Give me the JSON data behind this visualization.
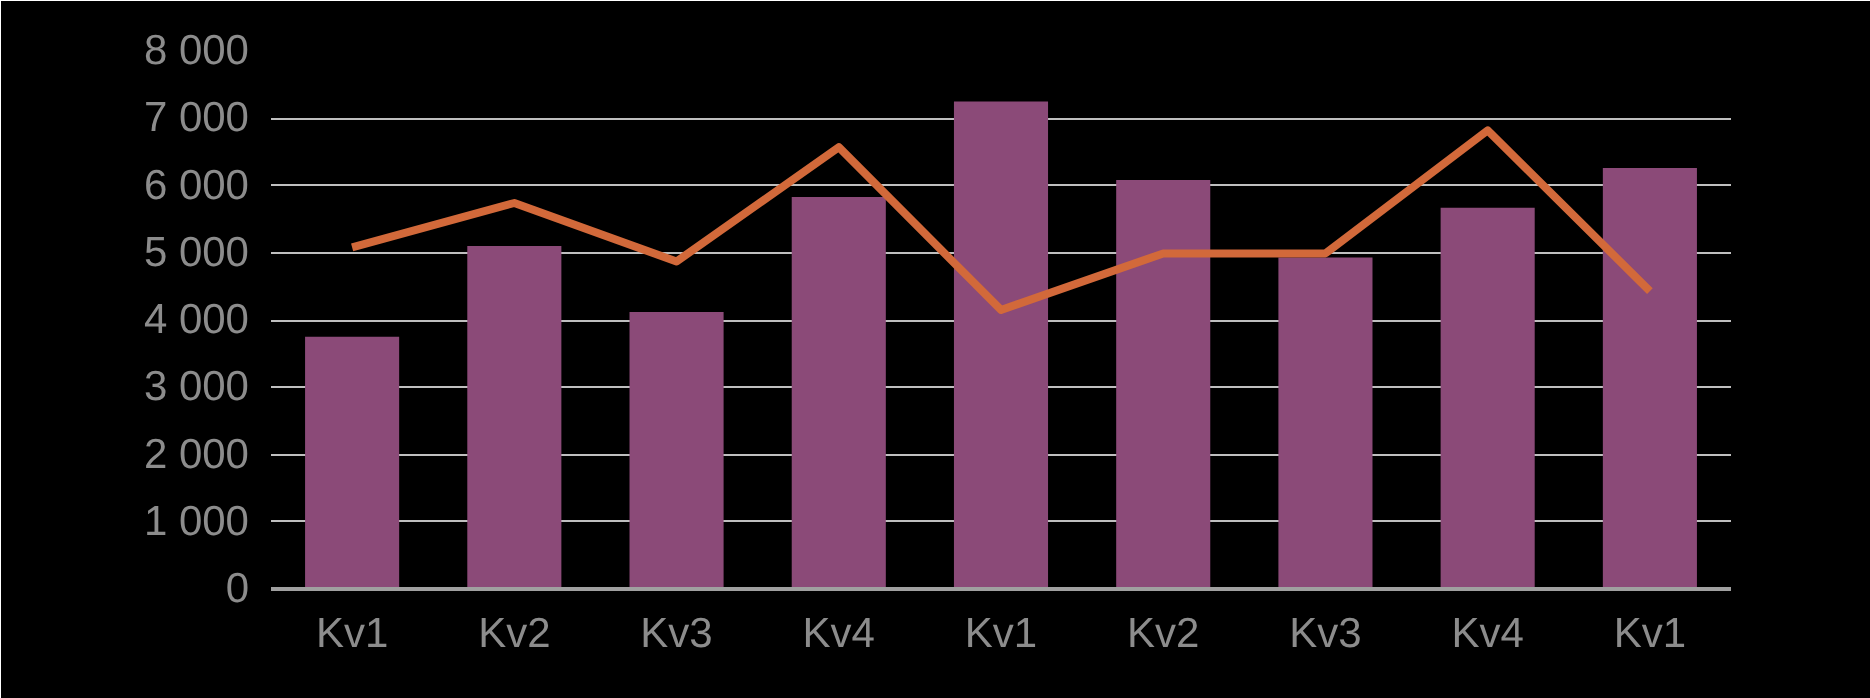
{
  "chart_data": {
    "type": "bar",
    "categories": [
      "Kv1",
      "Kv2",
      "Kv3",
      "Kv4",
      "Kv1",
      "Kv2",
      "Kv3",
      "Kv4",
      "Kv1"
    ],
    "series": [
      {
        "color": "#8b4a78",
        "values": [
          3750,
          5100,
          4120,
          5830,
          7250,
          6080,
          4930,
          5670,
          6260
        ]
      },
      {
        "type": "line",
        "color": "#d2693a",
        "values": [
          5080,
          5740,
          4870,
          6570,
          4150,
          4990,
          4990,
          6820,
          4430
        ]
      }
    ],
    "ylim": [
      0,
      8000
    ],
    "yticks": [
      {
        "value": 0,
        "label": "0"
      },
      {
        "value": 1000,
        "label": "1 000"
      },
      {
        "value": 2000,
        "label": "2 000"
      },
      {
        "value": 3000,
        "label": "3 000"
      },
      {
        "value": 4000,
        "label": "4 000"
      },
      {
        "value": 5000,
        "label": "5 000"
      },
      {
        "value": 6000,
        "label": "6 000"
      },
      {
        "value": 7000,
        "label": "7 000"
      },
      {
        "value": 8000,
        "label": "8 000"
      }
    ],
    "grid": "y",
    "marker": "none",
    "line_style": "solid"
  }
}
